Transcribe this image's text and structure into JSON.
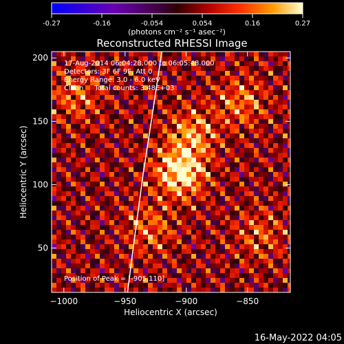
{
  "colorbar": {
    "ticks": [
      "-0.27",
      "-0.16",
      "-0.054",
      "0.054",
      "0.16",
      "0.27"
    ],
    "unit_label": "(photons cm⁻² s⁻¹ asec⁻²)",
    "range": [
      -0.27,
      0.27
    ]
  },
  "chart_data": {
    "type": "heatmap",
    "title": "Reconstructed RHESSI Image",
    "xlabel": "Heliocentric X (arcsec)",
    "ylabel": "Heliocentric Y (arcsec)",
    "xlim": [
      -1010,
      -815
    ],
    "ylim": [
      15,
      205
    ],
    "xticks": [
      -1000,
      -950,
      -900,
      -850
    ],
    "yticks": [
      50,
      100,
      150,
      200
    ],
    "annotations": [
      "17-Aug-2014 06:04:28.000 to 06:05:48.000",
      "Detectors: 3F 6F 9F, Att 0",
      "Energy Range: 3.0 - 6.0 keV",
      "Clean     Total counts: 3.48E+03"
    ],
    "peak_label": "Position of Peak = [-905,110]",
    "peak": {
      "x": -905,
      "y": 110,
      "value": 0.27
    },
    "sources": [
      {
        "x": -905,
        "y": 110,
        "amp": 1.0
      },
      {
        "x": -895,
        "y": 140,
        "amp": 0.6
      },
      {
        "x": -855,
        "y": 165,
        "amp": 0.5
      },
      {
        "x": -930,
        "y": 65,
        "amp": 0.45
      },
      {
        "x": -990,
        "y": 170,
        "amp": 0.45
      },
      {
        "x": -840,
        "y": 60,
        "amp": 0.4
      }
    ],
    "limb": [
      [
        -948,
        15
      ],
      [
        -942,
        60
      ],
      [
        -935,
        110
      ],
      [
        -927,
        160
      ],
      [
        -920,
        205
      ]
    ],
    "grid": false
  },
  "footer": {
    "date": "16-May-2022 04:05"
  }
}
